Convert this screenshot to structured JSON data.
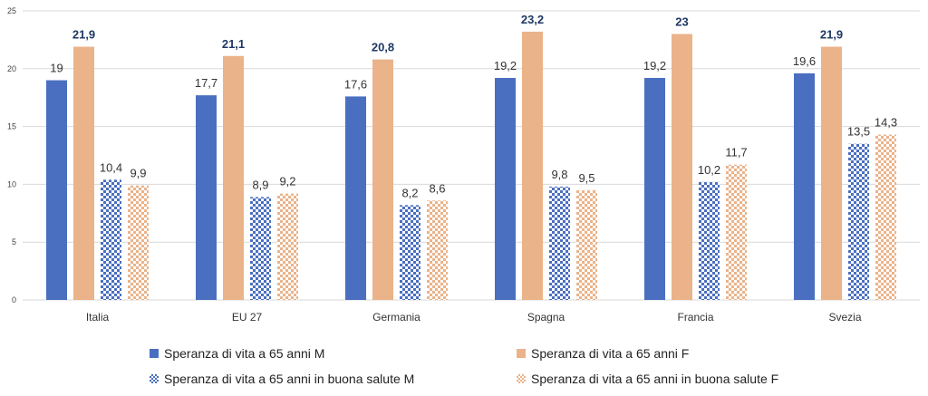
{
  "chart_data": {
    "type": "bar",
    "categories": [
      "Italia",
      "EU 27",
      "Germania",
      "Spagna",
      "Francia",
      "Svezia"
    ],
    "series": [
      {
        "name": "Speranza di vita a 65 anni M",
        "values": [
          19,
          17.7,
          17.6,
          19.2,
          19.2,
          19.6
        ],
        "labels": [
          "19",
          "17,7",
          "17,6",
          "19,2",
          "19,2",
          "19,6"
        ],
        "color": "#4a6fc0",
        "pattern": "solid"
      },
      {
        "name": "Speranza di vita a 65 anni F",
        "values": [
          21.9,
          21.1,
          20.8,
          23.2,
          23,
          21.9
        ],
        "labels": [
          "21,9",
          "21,1",
          "20,8",
          "23,2",
          "23",
          "21,9"
        ],
        "color": "#eab38a",
        "pattern": "solid",
        "label_color": "#1f3864"
      },
      {
        "name": "Speranza di vita a 65 anni in buona salute M",
        "values": [
          10.4,
          8.9,
          8.2,
          9.8,
          10.2,
          13.5
        ],
        "labels": [
          "10,4",
          "8,9",
          "8,2",
          "9,8",
          "10,2",
          "13,5"
        ],
        "color": "#4a6fc0",
        "pattern": "checker"
      },
      {
        "name": "Speranza di vita a 65 anni in buona salute F",
        "values": [
          9.9,
          9.2,
          8.6,
          9.5,
          11.7,
          14.3
        ],
        "labels": [
          "9,9",
          "9,2",
          "8,6",
          "9,5",
          "11,7",
          "14,3"
        ],
        "color": "#eab38a",
        "pattern": "checker"
      }
    ],
    "yticks": [
      0,
      5,
      10,
      15,
      20,
      25
    ],
    "ylim": [
      0,
      25
    ],
    "xlabel": "",
    "ylabel": "",
    "gridlines": true,
    "legend_position": "bottom"
  }
}
